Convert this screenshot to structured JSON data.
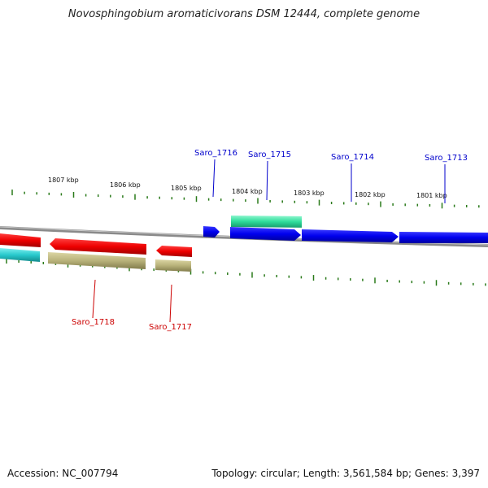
{
  "title": "Novosphingobium aromaticivorans DSM 12444, complete genome",
  "footer": {
    "accession": "Accession: NC_007794",
    "summary": "Topology: circular; Length: 3,561,584 bp; Genes: 3,397"
  },
  "colors": {
    "forward_gene": "#0000ee",
    "reverse_gene": "#ee0000",
    "forward_label": "#0000cc",
    "reverse_label": "#cc0000",
    "forward_feature": "#2edc9a",
    "reverse_feature_a": "#27c9cc",
    "reverse_feature_b": "#b8b27a",
    "backbone": "#8a8a8a",
    "tick": "#2a7a1a"
  },
  "scale_labels": [
    "1807 kbp",
    "1806 kbp",
    "1805 kbp",
    "1804 kbp",
    "1803 kbp",
    "1802 kbp",
    "1801 kbp"
  ],
  "genes": [
    {
      "name": "Saro_1716",
      "strand": "forward"
    },
    {
      "name": "Saro_1715",
      "strand": "forward"
    },
    {
      "name": "Saro_1714",
      "strand": "forward"
    },
    {
      "name": "Saro_1713",
      "strand": "forward"
    },
    {
      "name": "Saro_1718",
      "strand": "reverse"
    },
    {
      "name": "Saro_1717",
      "strand": "reverse"
    }
  ]
}
